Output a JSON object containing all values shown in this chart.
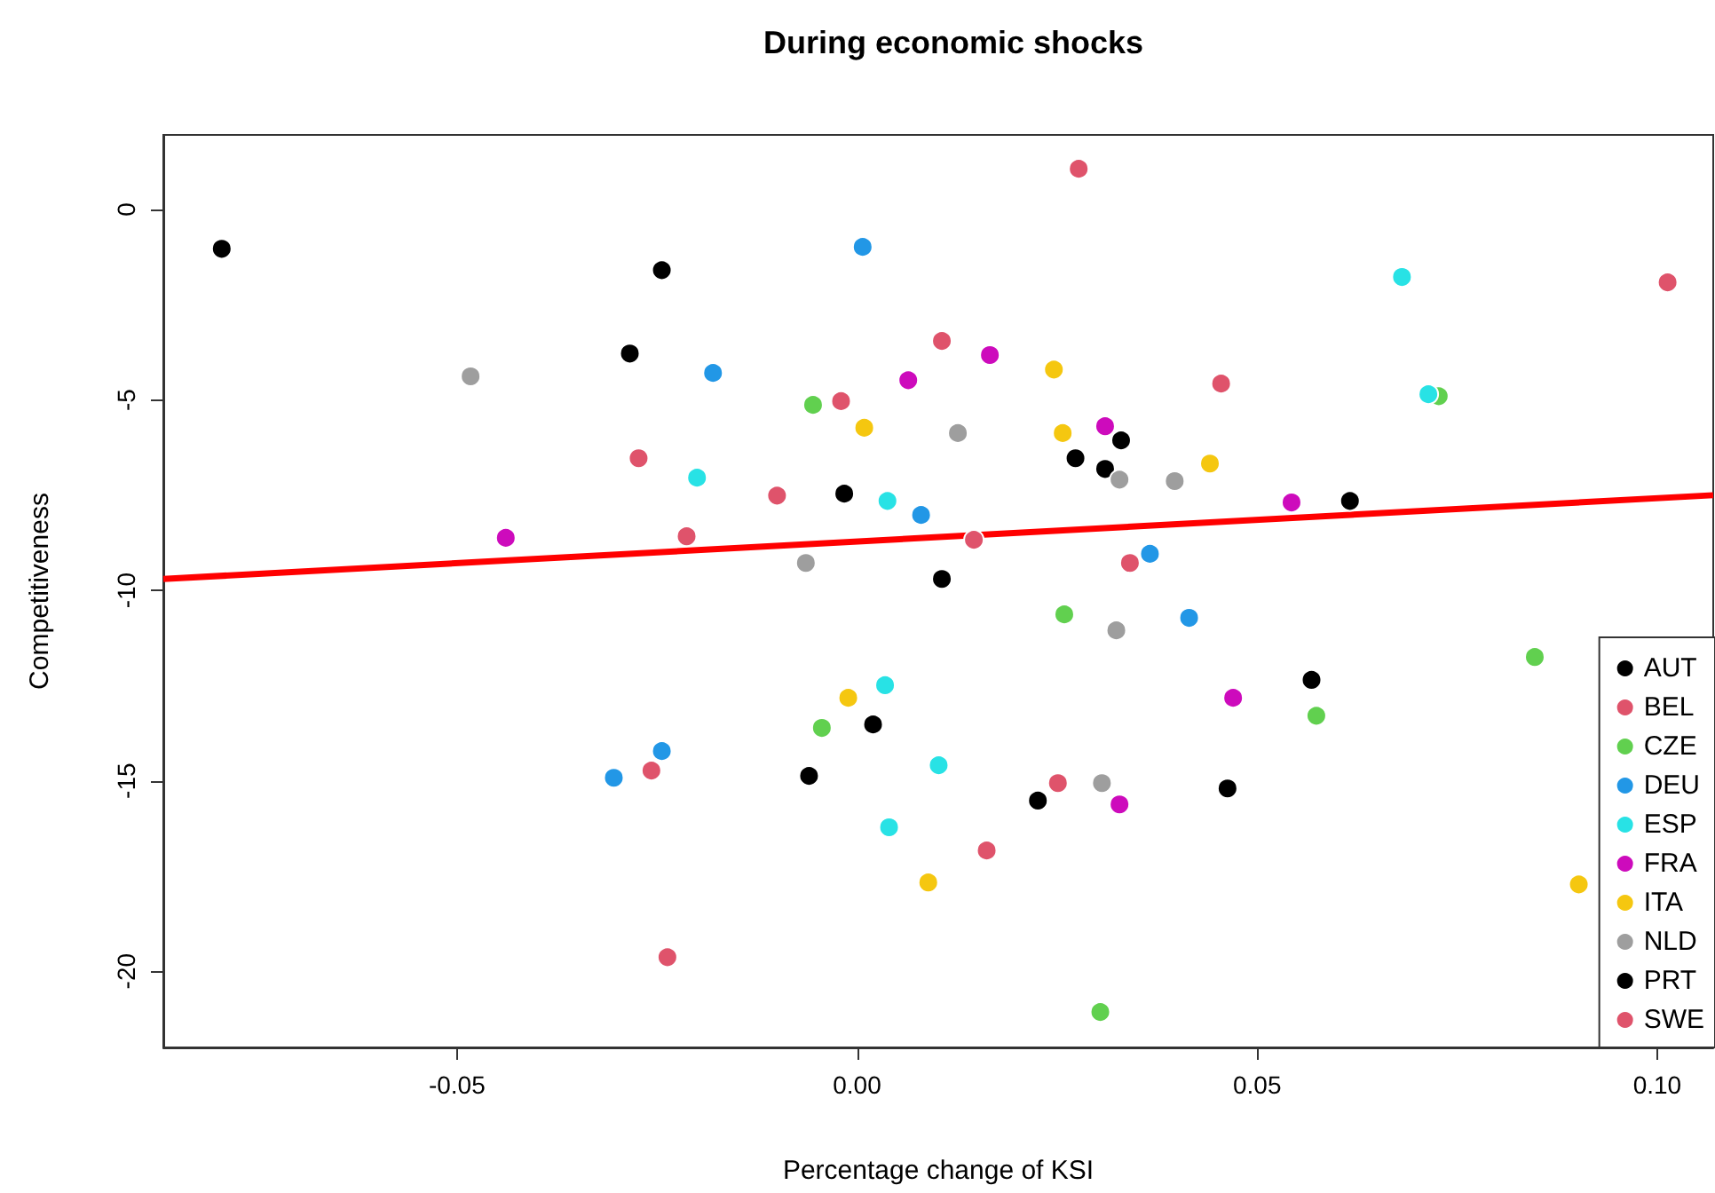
{
  "chart_data": {
    "type": "scatter",
    "title": "During economic shocks",
    "xlabel": "Percentage change of KSI",
    "ylabel": "Competitiveness",
    "xlim": [
      -0.0867,
      0.107
    ],
    "ylim": [
      -22.0,
      1.96
    ],
    "xticks": [
      {
        "value": -0.05,
        "label": "-0.05"
      },
      {
        "value": 0,
        "label": "0.00"
      },
      {
        "value": 0.05,
        "label": "0.05"
      },
      {
        "value": 0.1,
        "label": "0.10"
      }
    ],
    "yticks": [
      -20,
      -15,
      -10,
      -5,
      0
    ],
    "grid": false,
    "legend": "bottom right",
    "marker": "circle",
    "series": [
      {
        "name": "AUT",
        "color": "#000000",
        "x": [
          -0.0794,
          -0.0244,
          -0.0284,
          -0.0016,
          0.0273,
          0.031,
          0.033
        ],
        "values": [
          -1.03,
          -1.59,
          -3.78,
          -7.46,
          -6.53,
          -6.81,
          -6.06
        ]
      },
      {
        "name": "BEL",
        "color": "#df536b",
        "x": [
          -0.0273,
          -0.0213,
          0.0277,
          0.0106,
          -0.002,
          -0.01,
          0.0146
        ],
        "values": [
          -6.53,
          -8.58,
          1.07,
          -3.45,
          -5.03,
          -7.51,
          -8.67
        ]
      },
      {
        "name": "CZE",
        "color": "#61d04f",
        "x": [
          -0.0055,
          0.0727,
          0.0259,
          -0.0044,
          0.0304,
          0.0847,
          0.0574
        ],
        "values": [
          -5.13,
          -4.9,
          -10.63,
          -13.61,
          -21.07,
          -11.75,
          -13.29
        ]
      },
      {
        "name": "DEU",
        "color": "#2297e6",
        "x": [
          0.0007,
          -0.018,
          0.008,
          0.0366,
          0.0415,
          -0.0244,
          -0.0304
        ],
        "values": [
          -0.98,
          -4.29,
          -8.02,
          -9.04,
          -10.72,
          -14.22,
          -14.92
        ]
      },
      {
        "name": "ESP",
        "color": "#28e2e5",
        "x": [
          -0.02,
          0.0038,
          0.0681,
          0.0714,
          0.0035,
          0.0102,
          0.004
        ],
        "values": [
          -7.04,
          -7.65,
          -1.77,
          -4.85,
          -12.49,
          -14.59,
          -16.22
        ]
      },
      {
        "name": "FRA",
        "color": "#cd0bbc",
        "x": [
          -0.0439,
          0.0064,
          0.0166,
          0.031,
          0.0543,
          0.0328,
          0.047
        ],
        "values": [
          -8.62,
          -4.48,
          -3.82,
          -5.69,
          -7.69,
          -15.62,
          -12.82
        ]
      },
      {
        "name": "ITA",
        "color": "#f5c710",
        "x": [
          0.0246,
          0.0009,
          0.0257,
          0.0441,
          -0.0011,
          0.0089,
          0.0902
        ],
        "values": [
          -4.2,
          -5.73,
          -5.87,
          -6.67,
          -12.82,
          -17.67,
          -17.72
        ]
      },
      {
        "name": "NLD",
        "color": "#9e9e9e",
        "x": [
          -0.0483,
          0.0126,
          0.0328,
          0.0397,
          -0.0064,
          0.0324,
          0.0306
        ],
        "values": [
          -4.38,
          -5.87,
          -7.09,
          -7.13,
          -9.28,
          -11.05,
          -15.06
        ]
      },
      {
        "name": "PRT",
        "color": "#000000",
        "x": [
          0.0106,
          0.002,
          -0.006,
          0.0226,
          0.0616,
          0.0568,
          0.0463
        ],
        "values": [
          -9.7,
          -13.52,
          -14.87,
          -15.52,
          -7.65,
          -12.35,
          -15.2
        ]
      },
      {
        "name": "SWE",
        "color": "#df536b",
        "x": [
          0.0341,
          0.0455,
          0.1013,
          -0.0257,
          -0.0237,
          0.0251,
          0.0162
        ],
        "values": [
          -9.28,
          -4.57,
          -1.91,
          -14.73,
          -19.63,
          -15.06,
          -16.83
        ]
      },
      {
        "type": "line",
        "marker": "none",
        "color": "#ff0000",
        "x": [
          -0.0867,
          0.107
        ],
        "values": [
          -9.7,
          -7.5
        ]
      }
    ]
  }
}
